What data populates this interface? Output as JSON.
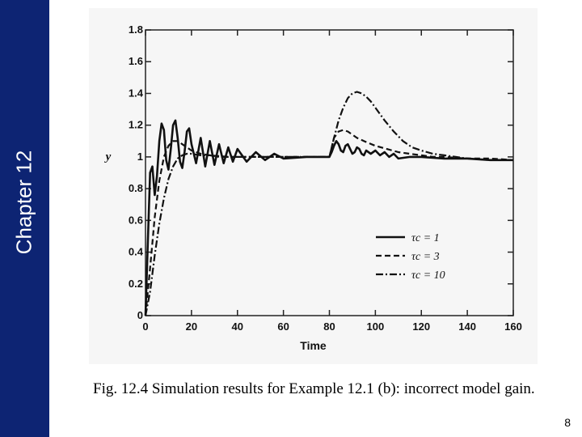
{
  "sidebar": {
    "chapter_label": "Chapter 12",
    "color": "#0d2473"
  },
  "caption": "Fig. 12.4 Simulation results for Example 12.1 (b): incorrect model gain.",
  "page_number": "8",
  "chart_data": {
    "type": "line",
    "xlabel": "Time",
    "ylabel": "y",
    "xlim": [
      0,
      160
    ],
    "ylim": [
      0,
      1.8
    ],
    "x_ticks": [
      0,
      20,
      40,
      60,
      80,
      100,
      120,
      140,
      160
    ],
    "y_ticks": [
      0,
      0.2,
      0.4,
      0.6,
      0.8,
      1,
      1.2,
      1.4,
      1.6,
      1.8
    ],
    "y_tick_labels": [
      "0",
      "0.2",
      "0.4",
      "0.6",
      "0.8",
      "1",
      "1.2",
      "1.4",
      "1.6",
      "1.8"
    ],
    "legend_position": "bottom-right",
    "series": [
      {
        "name": "τc = 1",
        "style": "solid",
        "x": [
          0,
          1,
          2,
          3,
          4,
          5,
          6,
          7,
          8,
          9,
          10,
          11,
          12,
          13,
          14,
          15,
          16,
          17,
          18,
          19,
          20,
          22,
          24,
          26,
          28,
          30,
          32,
          34,
          36,
          38,
          40,
          44,
          48,
          52,
          56,
          60,
          70,
          80,
          81,
          82,
          83,
          84,
          85,
          86,
          87,
          88,
          89,
          90,
          91,
          92,
          93,
          94,
          95,
          96,
          98,
          100,
          102,
          104,
          106,
          108,
          110,
          115,
          120,
          130,
          140,
          150,
          160
        ],
        "y": [
          0,
          0.45,
          0.9,
          0.94,
          0.76,
          0.88,
          1.1,
          1.21,
          1.17,
          0.98,
          0.92,
          1.05,
          1.2,
          1.23,
          1.12,
          0.97,
          0.93,
          1.03,
          1.16,
          1.18,
          1.08,
          0.96,
          1.12,
          0.94,
          1.1,
          0.95,
          1.08,
          0.96,
          1.06,
          0.97,
          1.05,
          0.97,
          1.03,
          0.98,
          1.02,
          0.99,
          1.0,
          1.0,
          1.03,
          1.07,
          1.1,
          1.08,
          1.04,
          1.03,
          1.07,
          1.08,
          1.05,
          1.02,
          1.03,
          1.06,
          1.05,
          1.02,
          1.01,
          1.04,
          1.02,
          1.04,
          1.01,
          1.03,
          1.0,
          1.02,
          0.99,
          1.0,
          1.0,
          0.99,
          0.99,
          0.98,
          0.98
        ]
      },
      {
        "name": "τc = 3",
        "style": "dashed",
        "x": [
          0,
          2,
          4,
          6,
          8,
          10,
          12,
          14,
          16,
          18,
          20,
          24,
          28,
          32,
          36,
          40,
          50,
          60,
          70,
          80,
          81,
          82,
          84,
          86,
          88,
          90,
          92,
          95,
          100,
          105,
          110,
          115,
          120,
          125,
          130,
          140,
          150,
          160
        ],
        "y": [
          0,
          0.3,
          0.62,
          0.85,
          1.0,
          1.07,
          1.1,
          1.1,
          1.08,
          1.06,
          1.04,
          1.02,
          1.01,
          1.005,
          1.0,
          1.0,
          1.0,
          1.0,
          1.0,
          1.0,
          1.06,
          1.12,
          1.16,
          1.17,
          1.16,
          1.14,
          1.12,
          1.1,
          1.07,
          1.05,
          1.03,
          1.02,
          1.01,
          1.0,
          1.0,
          0.99,
          0.99,
          0.98
        ]
      },
      {
        "name": "τc = 10",
        "style": "dashdot",
        "x": [
          0,
          2,
          4,
          6,
          8,
          10,
          12,
          14,
          16,
          18,
          20,
          24,
          28,
          32,
          36,
          40,
          50,
          60,
          70,
          80,
          82,
          84,
          86,
          88,
          90,
          92,
          94,
          96,
          98,
          100,
          104,
          108,
          112,
          116,
          120,
          125,
          130,
          140,
          150,
          160
        ],
        "y": [
          0,
          0.15,
          0.38,
          0.58,
          0.74,
          0.86,
          0.94,
          0.99,
          1.01,
          1.02,
          1.02,
          1.01,
          1.01,
          1.0,
          1.0,
          1.0,
          1.0,
          1.0,
          1.0,
          1.0,
          1.12,
          1.23,
          1.31,
          1.37,
          1.4,
          1.41,
          1.4,
          1.38,
          1.35,
          1.31,
          1.23,
          1.16,
          1.1,
          1.06,
          1.04,
          1.02,
          1.01,
          0.99,
          0.98,
          0.98
        ]
      }
    ]
  }
}
